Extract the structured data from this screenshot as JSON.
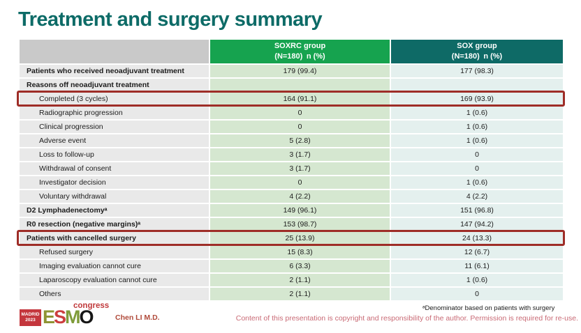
{
  "title": "Treatment and surgery summary",
  "table": {
    "header": {
      "soxrc": {
        "line1": "SOXRC group",
        "line2": "(N=180) n (%)"
      },
      "sox": {
        "line1": "SOX group",
        "line2": "(N=180) n (%)"
      }
    },
    "rows": [
      {
        "label": "Patients who received neoadjuvant treatment",
        "bold": true,
        "indent": false,
        "highlight": false,
        "soxrc": "179 (99.4)",
        "sox": "177 (98.3)"
      },
      {
        "label": "Reasons off neoadjuvant treatment",
        "bold": true,
        "indent": false,
        "highlight": false,
        "soxrc": "",
        "sox": ""
      },
      {
        "label": "Completed (3 cycles)",
        "bold": false,
        "indent": true,
        "highlight": true,
        "soxrc": "164 (91.1)",
        "sox": "169 (93.9)"
      },
      {
        "label": "Radiographic progression",
        "bold": false,
        "indent": true,
        "highlight": false,
        "soxrc": "0",
        "sox": "1 (0.6)"
      },
      {
        "label": "Clinical progression",
        "bold": false,
        "indent": true,
        "highlight": false,
        "soxrc": "0",
        "sox": "1 (0.6)"
      },
      {
        "label": "Adverse event",
        "bold": false,
        "indent": true,
        "highlight": false,
        "soxrc": "5 (2.8)",
        "sox": "1 (0.6)"
      },
      {
        "label": "Loss to follow-up",
        "bold": false,
        "indent": true,
        "highlight": false,
        "soxrc": "3 (1.7)",
        "sox": "0"
      },
      {
        "label": "Withdrawal of consent",
        "bold": false,
        "indent": true,
        "highlight": false,
        "soxrc": "3 (1.7)",
        "sox": "0"
      },
      {
        "label": "Investigator decision",
        "bold": false,
        "indent": true,
        "highlight": false,
        "soxrc": "0",
        "sox": "1 (0.6)"
      },
      {
        "label": "Voluntary withdrawal",
        "bold": false,
        "indent": true,
        "highlight": false,
        "soxrc": "4 (2.2)",
        "sox": "4 (2.2)"
      },
      {
        "label": "D2 Lymphadenectomyᵃ",
        "bold": true,
        "indent": false,
        "highlight": false,
        "soxrc": "149 (96.1)",
        "sox": "151 (96.8)"
      },
      {
        "label": "R0 resection (negative margins)ᵃ",
        "bold": true,
        "indent": false,
        "highlight": false,
        "soxrc": "153 (98.7)",
        "sox": "147 (94.2)"
      },
      {
        "label": "Patients with cancelled surgery",
        "bold": true,
        "indent": false,
        "highlight": true,
        "soxrc": "25 (13.9)",
        "sox": "24 (13.3)"
      },
      {
        "label": "Refused surgery",
        "bold": false,
        "indent": true,
        "highlight": false,
        "soxrc": "15 (8.3)",
        "sox": "12 (6.7)"
      },
      {
        "label": "Imaging evaluation cannot cure",
        "bold": false,
        "indent": true,
        "highlight": false,
        "soxrc": "6 (3.3)",
        "sox": "11 (6.1)"
      },
      {
        "label": "Laparoscopy evaluation cannot cure",
        "bold": false,
        "indent": true,
        "highlight": false,
        "soxrc": "2 (1.1)",
        "sox": "1 (0.6)"
      },
      {
        "label": "Others",
        "bold": false,
        "indent": true,
        "highlight": false,
        "soxrc": "2 (1.1)",
        "sox": "0"
      }
    ]
  },
  "footer": {
    "presenter": "Chen LI M.D.",
    "footnote": "ᵃDenominator based on patients with surgery",
    "copyright": "Content of this presentation is copyright and responsibility of the author. Permission is required for re-use.",
    "logo": {
      "badge_line1": "MADRID",
      "badge_line2": "2023",
      "letters": [
        "E",
        "S",
        "M",
        "O"
      ],
      "congress": "congress"
    }
  },
  "colors": {
    "title_text": "#0d6b67",
    "header_soxrc_bg": "#16a34f",
    "header_sox_bg": "#0e6a66",
    "header_label_bg": "#c9c9c9",
    "label_cell_bg": "#e9e9e9",
    "soxrc_cell_bg": "#d5e7d0",
    "sox_cell_bg": "#e4f0ee",
    "highlight_border": "#9e2d27",
    "copyright_text": "#c96a75",
    "presenter_text": "#b04a3a"
  }
}
